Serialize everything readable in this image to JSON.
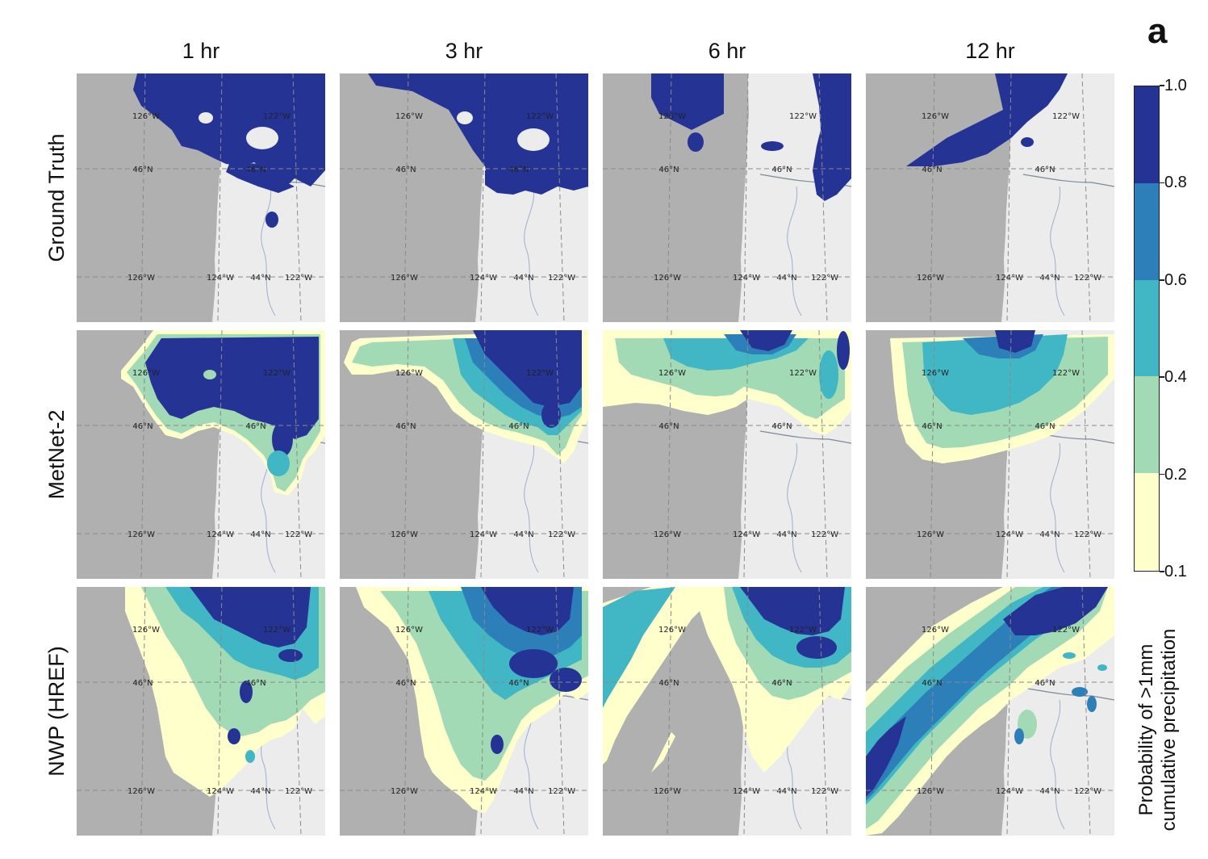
{
  "figure": {
    "panel_letter": "a"
  },
  "columns": [
    "1 hr",
    "3 hr",
    "6 hr",
    "12 hr"
  ],
  "rows": [
    "Ground Truth",
    "MetNet-2",
    "NWP (HREF)"
  ],
  "map_labels": {
    "lon_126": "126°W",
    "lon_124": "124°W",
    "lon_122": "122°W",
    "lat_46": "46°N",
    "lat_44": "44°N"
  },
  "colors": {
    "ocean": "#b0b0b0",
    "land": "#ececec",
    "grid": "#8a8a8a",
    "river": "#9ab0cc"
  },
  "chart_data": {
    "type": "heatmap",
    "title": "",
    "subtitle": "",
    "description_of_quantity": "Probability of >1mm cumulative precipitation",
    "lead_times": [
      "1 hr",
      "3 hr",
      "6 hr",
      "12 hr"
    ],
    "models": [
      "Ground Truth",
      "MetNet-2",
      "NWP (HREF)"
    ],
    "colorbar": {
      "label": [
        "Probability of >1mm",
        "cumulative precipitation"
      ],
      "ticks": [
        "1.0",
        "0.8",
        "0.6",
        "0.4",
        "0.2",
        "0.1"
      ],
      "bins": [
        {
          "from": 0.1,
          "to": 0.2,
          "color": "#ffffcc"
        },
        {
          "from": 0.2,
          "to": 0.4,
          "color": "#a1dab4"
        },
        {
          "from": 0.4,
          "to": 0.6,
          "color": "#41b6c4"
        },
        {
          "from": 0.6,
          "to": 0.8,
          "color": "#2c7fb8"
        },
        {
          "from": 0.8,
          "to": 1.0,
          "color": "#253494"
        }
      ]
    }
  }
}
